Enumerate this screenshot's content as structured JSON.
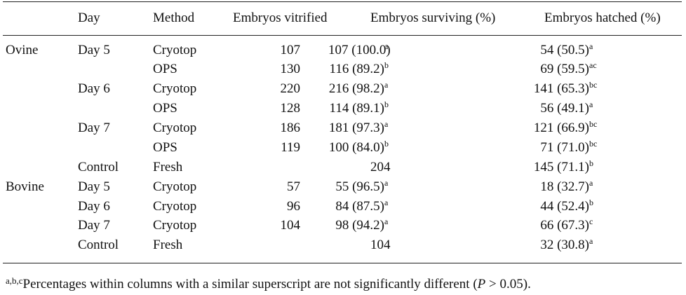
{
  "headers": {
    "day": "Day",
    "method": "Method",
    "vitrified": "Embryos vitrified",
    "surviving": "Embryos surviving (%)",
    "hatched": "Embryos hatched (%)"
  },
  "rows": [
    {
      "group": "Ovine",
      "day": "Day 5",
      "method": "Cryotop",
      "vitrified": "107",
      "surviving": "107 (100.0)",
      "surviving_sup": "a",
      "hatched": "54 (50.5)",
      "hatched_sup": "a"
    },
    {
      "group": "",
      "day": "",
      "method": "OPS",
      "vitrified": "130",
      "surviving": "116 (89.2)",
      "surviving_sup": "b",
      "hatched": "69 (59.5)",
      "hatched_sup": "ac"
    },
    {
      "group": "",
      "day": "Day 6",
      "method": "Cryotop",
      "vitrified": "220",
      "surviving": "216 (98.2)",
      "surviving_sup": "a",
      "hatched": "141 (65.3)",
      "hatched_sup": "bc"
    },
    {
      "group": "",
      "day": "",
      "method": "OPS",
      "vitrified": "128",
      "surviving": "114 (89.1)",
      "surviving_sup": "b",
      "hatched": "56 (49.1)",
      "hatched_sup": "a"
    },
    {
      "group": "",
      "day": "Day 7",
      "method": "Cryotop",
      "vitrified": "186",
      "surviving": "181 (97.3)",
      "surviving_sup": "a",
      "hatched": "121 (66.9)",
      "hatched_sup": "bc"
    },
    {
      "group": "",
      "day": "",
      "method": "OPS",
      "vitrified": "119",
      "surviving": "100 (84.0)",
      "surviving_sup": "b",
      "hatched": "71 (71.0)",
      "hatched_sup": "bc"
    },
    {
      "group": "",
      "day": "Control",
      "method": "Fresh",
      "vitrified": "",
      "surviving": "204",
      "surviving_sup": "",
      "hatched": "145 (71.1)",
      "hatched_sup": "b"
    },
    {
      "group": "Bovine",
      "day": "Day 5",
      "method": "Cryotop",
      "vitrified": "57",
      "surviving": "55 (96.5)",
      "surviving_sup": "a",
      "hatched": "18 (32.7)",
      "hatched_sup": "a"
    },
    {
      "group": "",
      "day": "Day 6",
      "method": "Cryotop",
      "vitrified": "96",
      "surviving": "84 (87.5)",
      "surviving_sup": "a",
      "hatched": "44 (52.4)",
      "hatched_sup": "b"
    },
    {
      "group": "",
      "day": "Day 7",
      "method": "Cryotop",
      "vitrified": "104",
      "surviving": "98 (94.2)",
      "surviving_sup": "a",
      "hatched": "66 (67.3)",
      "hatched_sup": "c"
    },
    {
      "group": "",
      "day": "Control",
      "method": "Fresh",
      "vitrified": "",
      "surviving": "104",
      "surviving_sup": "",
      "hatched": "32 (30.8)",
      "hatched_sup": "a"
    }
  ],
  "footnote": {
    "marker": "a,b,c",
    "text_before": "Percentages within columns with a similar superscript are not significantly different (",
    "p_symbol": "P",
    "text_after": " > 0.05)."
  }
}
